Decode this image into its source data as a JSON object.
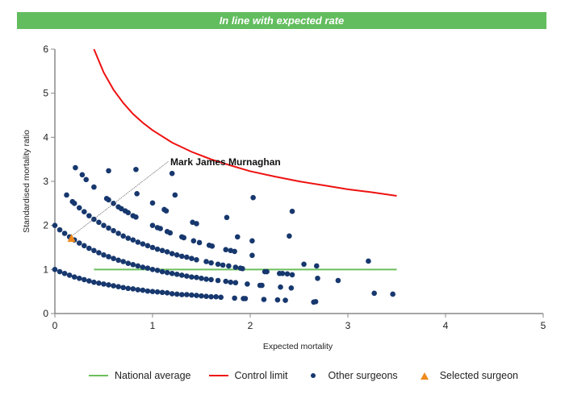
{
  "banner": {
    "text": "In line with expected rate",
    "color": "#62bd5e"
  },
  "chart_data": {
    "type": "scatter",
    "xlabel": "Expected mortality",
    "ylabel": "Standardised mortality ratio",
    "xlim": [
      0,
      5
    ],
    "ylim": [
      0,
      6
    ],
    "xticks": [
      "0",
      "1",
      "2",
      "3",
      "4",
      "5"
    ],
    "yticks": [
      "0",
      "1",
      "2",
      "3",
      "4",
      "5",
      "6"
    ],
    "grid": false,
    "legend_position": "bottom",
    "series": [
      {
        "name": "National average",
        "type": "line",
        "color": "#6abf5a",
        "points": [
          [
            0.4,
            1.0
          ],
          [
            3.5,
            1.0
          ]
        ]
      },
      {
        "name": "Control limit",
        "type": "line",
        "color": "#ee1111",
        "points": [
          [
            0.4,
            6.0
          ],
          [
            0.5,
            5.47
          ],
          [
            0.6,
            5.08
          ],
          [
            0.7,
            4.78
          ],
          [
            0.8,
            4.53
          ],
          [
            0.9,
            4.33
          ],
          [
            1.0,
            4.16
          ],
          [
            1.2,
            3.88
          ],
          [
            1.4,
            3.67
          ],
          [
            1.6,
            3.5
          ],
          [
            1.8,
            3.36
          ],
          [
            2.0,
            3.23
          ],
          [
            2.25,
            3.11
          ],
          [
            2.5,
            3.0
          ],
          [
            2.75,
            2.91
          ],
          [
            3.0,
            2.82
          ],
          [
            3.25,
            2.75
          ],
          [
            3.5,
            2.67
          ]
        ]
      },
      {
        "name": "Other surgeons",
        "type": "scatter",
        "color": "#17386e",
        "points": [
          [
            0,
            1.0
          ],
          [
            0.05,
            0.95
          ],
          [
            0.1,
            0.91
          ],
          [
            0.15,
            0.87
          ],
          [
            0.2,
            0.83
          ],
          [
            0.25,
            0.8
          ],
          [
            0.3,
            0.77
          ],
          [
            0.35,
            0.74
          ],
          [
            0.4,
            0.71
          ],
          [
            0.45,
            0.69
          ],
          [
            0.5,
            0.67
          ],
          [
            0.55,
            0.65
          ],
          [
            0.6,
            0.63
          ],
          [
            0.65,
            0.61
          ],
          [
            0.7,
            0.59
          ],
          [
            0.75,
            0.57
          ],
          [
            0.8,
            0.56
          ],
          [
            0.85,
            0.54
          ],
          [
            0.9,
            0.53
          ],
          [
            0.95,
            0.51
          ],
          [
            1.0,
            0.5
          ],
          [
            1.05,
            0.49
          ],
          [
            1.1,
            0.48
          ],
          [
            1.15,
            0.47
          ],
          [
            1.2,
            0.45
          ],
          [
            1.25,
            0.44
          ],
          [
            1.3,
            0.43
          ],
          [
            1.35,
            0.43
          ],
          [
            1.4,
            0.42
          ],
          [
            1.45,
            0.41
          ],
          [
            1.5,
            0.4
          ],
          [
            1.55,
            0.39
          ],
          [
            1.6,
            0.38
          ],
          [
            1.65,
            0.38
          ],
          [
            1.7,
            0.37
          ],
          [
            1.84,
            0.35
          ],
          [
            1.93,
            0.34
          ],
          [
            1.95,
            0.34
          ],
          [
            2.14,
            0.32
          ],
          [
            2.28,
            0.31
          ],
          [
            2.36,
            0.3
          ],
          [
            2.65,
            0.26
          ],
          [
            2.67,
            0.27
          ],
          [
            0,
            2.0
          ],
          [
            0.05,
            1.9
          ],
          [
            0.1,
            1.82
          ],
          [
            0.15,
            1.74
          ],
          [
            0.2,
            1.67
          ],
          [
            0.25,
            1.6
          ],
          [
            0.3,
            1.54
          ],
          [
            0.35,
            1.48
          ],
          [
            0.4,
            1.43
          ],
          [
            0.45,
            1.38
          ],
          [
            0.5,
            1.33
          ],
          [
            0.55,
            1.29
          ],
          [
            0.6,
            1.25
          ],
          [
            0.65,
            1.21
          ],
          [
            0.7,
            1.18
          ],
          [
            0.75,
            1.14
          ],
          [
            0.8,
            1.11
          ],
          [
            0.85,
            1.08
          ],
          [
            0.9,
            1.05
          ],
          [
            0.95,
            1.03
          ],
          [
            1.0,
            1.0
          ],
          [
            1.05,
            0.98
          ],
          [
            1.1,
            0.95
          ],
          [
            1.15,
            0.93
          ],
          [
            1.2,
            0.91
          ],
          [
            1.25,
            0.89
          ],
          [
            1.3,
            0.87
          ],
          [
            1.35,
            0.85
          ],
          [
            1.4,
            0.83
          ],
          [
            1.45,
            0.82
          ],
          [
            1.5,
            0.8
          ],
          [
            1.55,
            0.78
          ],
          [
            1.6,
            0.77
          ],
          [
            1.67,
            0.75
          ],
          [
            1.75,
            0.73
          ],
          [
            1.8,
            0.71
          ],
          [
            1.85,
            0.7
          ],
          [
            1.97,
            0.67
          ],
          [
            2.1,
            0.64
          ],
          [
            2.12,
            0.64
          ],
          [
            2.31,
            0.6
          ],
          [
            2.42,
            0.58
          ],
          [
            0.18,
            2.54
          ],
          [
            0.2,
            2.5
          ],
          [
            0.25,
            2.4
          ],
          [
            0.3,
            2.31
          ],
          [
            0.35,
            2.22
          ],
          [
            0.4,
            2.14
          ],
          [
            0.45,
            2.07
          ],
          [
            0.5,
            2.0
          ],
          [
            0.55,
            1.94
          ],
          [
            0.6,
            1.88
          ],
          [
            0.65,
            1.82
          ],
          [
            0.7,
            1.76
          ],
          [
            0.75,
            1.71
          ],
          [
            0.8,
            1.67
          ],
          [
            0.85,
            1.62
          ],
          [
            0.9,
            1.58
          ],
          [
            0.95,
            1.54
          ],
          [
            1.0,
            1.5
          ],
          [
            1.05,
            1.46
          ],
          [
            1.1,
            1.43
          ],
          [
            1.15,
            1.4
          ],
          [
            1.2,
            1.36
          ],
          [
            1.25,
            1.33
          ],
          [
            1.3,
            1.3
          ],
          [
            1.35,
            1.28
          ],
          [
            1.4,
            1.25
          ],
          [
            1.45,
            1.22
          ],
          [
            1.55,
            1.18
          ],
          [
            1.6,
            1.15
          ],
          [
            1.67,
            1.12
          ],
          [
            1.72,
            1.1
          ],
          [
            1.78,
            1.08
          ],
          [
            1.85,
            1.05
          ],
          [
            1.9,
            1.03
          ],
          [
            1.92,
            1.02
          ],
          [
            2.15,
            0.95
          ],
          [
            2.17,
            0.95
          ],
          [
            2.3,
            0.91
          ],
          [
            2.33,
            0.91
          ],
          [
            2.38,
            0.9
          ],
          [
            2.43,
            0.88
          ],
          [
            0.53,
            2.61
          ],
          [
            0.55,
            2.58
          ],
          [
            0.6,
            2.5
          ],
          [
            0.65,
            2.42
          ],
          [
            0.68,
            2.38
          ],
          [
            0.72,
            2.33
          ],
          [
            0.75,
            2.29
          ],
          [
            0.8,
            2.22
          ],
          [
            0.83,
            2.19
          ],
          [
            1.0,
            2.0
          ],
          [
            1.05,
            1.95
          ],
          [
            1.08,
            1.93
          ],
          [
            1.15,
            1.86
          ],
          [
            1.18,
            1.83
          ],
          [
            1.3,
            1.74
          ],
          [
            1.32,
            1.72
          ],
          [
            1.42,
            1.65
          ],
          [
            1.48,
            1.61
          ],
          [
            1.58,
            1.55
          ],
          [
            1.61,
            1.53
          ],
          [
            1.75,
            1.45
          ],
          [
            1.8,
            1.43
          ],
          [
            1.84,
            1.41
          ],
          [
            2.02,
            1.32
          ],
          [
            2.55,
            1.12
          ],
          [
            2.68,
            1.08
          ],
          [
            0.12,
            2.69
          ],
          [
            0.21,
            3.31
          ],
          [
            0.28,
            3.15
          ],
          [
            0.32,
            3.04
          ],
          [
            0.4,
            2.87
          ],
          [
            0.55,
            3.24
          ],
          [
            0.83,
            3.27
          ],
          [
            0.84,
            2.72
          ],
          [
            1.2,
            3.18
          ],
          [
            1.23,
            2.69
          ],
          [
            1.0,
            2.51
          ],
          [
            1.12,
            2.36
          ],
          [
            1.14,
            2.33
          ],
          [
            1.41,
            2.07
          ],
          [
            1.45,
            2.04
          ],
          [
            1.76,
            2.18
          ],
          [
            1.87,
            1.74
          ],
          [
            2.03,
            2.63
          ],
          [
            2.02,
            1.65
          ],
          [
            2.43,
            2.32
          ],
          [
            2.4,
            1.76
          ],
          [
            3.21,
            1.19
          ],
          [
            2.69,
            0.8
          ],
          [
            2.9,
            0.75
          ],
          [
            3.27,
            0.46
          ],
          [
            3.46,
            0.44
          ]
        ]
      },
      {
        "name": "Selected surgeon",
        "type": "scatter",
        "marker": "triangle",
        "color": "#f08a1c",
        "points": [
          [
            0.17,
            1.7
          ]
        ],
        "annotation": "Mark James Murnaghan"
      }
    ]
  },
  "legend": {
    "items": [
      "National average",
      "Control limit",
      "Other surgeons",
      "Selected surgeon"
    ]
  }
}
